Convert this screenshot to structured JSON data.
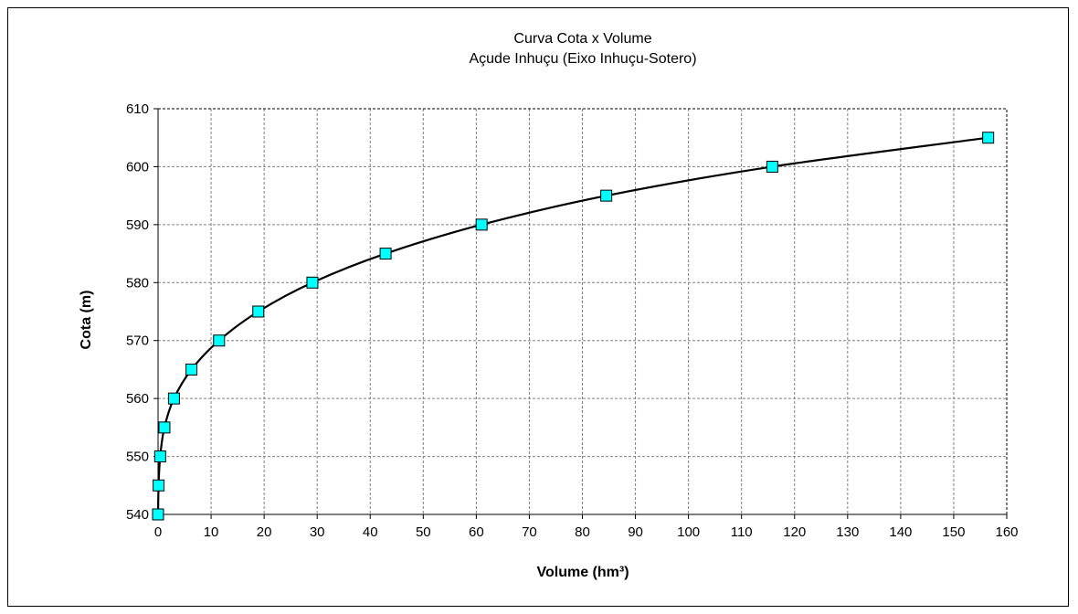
{
  "chart_data": {
    "type": "scatter",
    "title": "Curva Cota x Volume",
    "subtitle": "Açude Inhuçu (Eixo Inhuçu-Sotero)",
    "xlabel": "Volume (hm³)",
    "ylabel": "Cota (m)",
    "xlim": [
      0,
      160
    ],
    "ylim": [
      540,
      610
    ],
    "x_ticks": [
      0,
      10,
      20,
      30,
      40,
      50,
      60,
      70,
      80,
      90,
      100,
      110,
      120,
      130,
      140,
      150,
      160
    ],
    "y_ticks": [
      540,
      550,
      560,
      570,
      580,
      590,
      600,
      610
    ],
    "grid": true,
    "legend": "none",
    "marker_color": "#00FFFF",
    "line_color": "#000000",
    "points": [
      {
        "x": 0,
        "y": 540
      },
      {
        "x": 0.1,
        "y": 545
      },
      {
        "x": 0.4,
        "y": 550
      },
      {
        "x": 1.2,
        "y": 555
      },
      {
        "x": 3.0,
        "y": 560
      },
      {
        "x": 6.3,
        "y": 565
      },
      {
        "x": 11.5,
        "y": 570
      },
      {
        "x": 18.9,
        "y": 575
      },
      {
        "x": 29.1,
        "y": 580
      },
      {
        "x": 42.9,
        "y": 585
      },
      {
        "x": 61.0,
        "y": 590
      },
      {
        "x": 84.5,
        "y": 595
      },
      {
        "x": 115.8,
        "y": 600
      },
      {
        "x": 156.5,
        "y": 605
      }
    ]
  }
}
